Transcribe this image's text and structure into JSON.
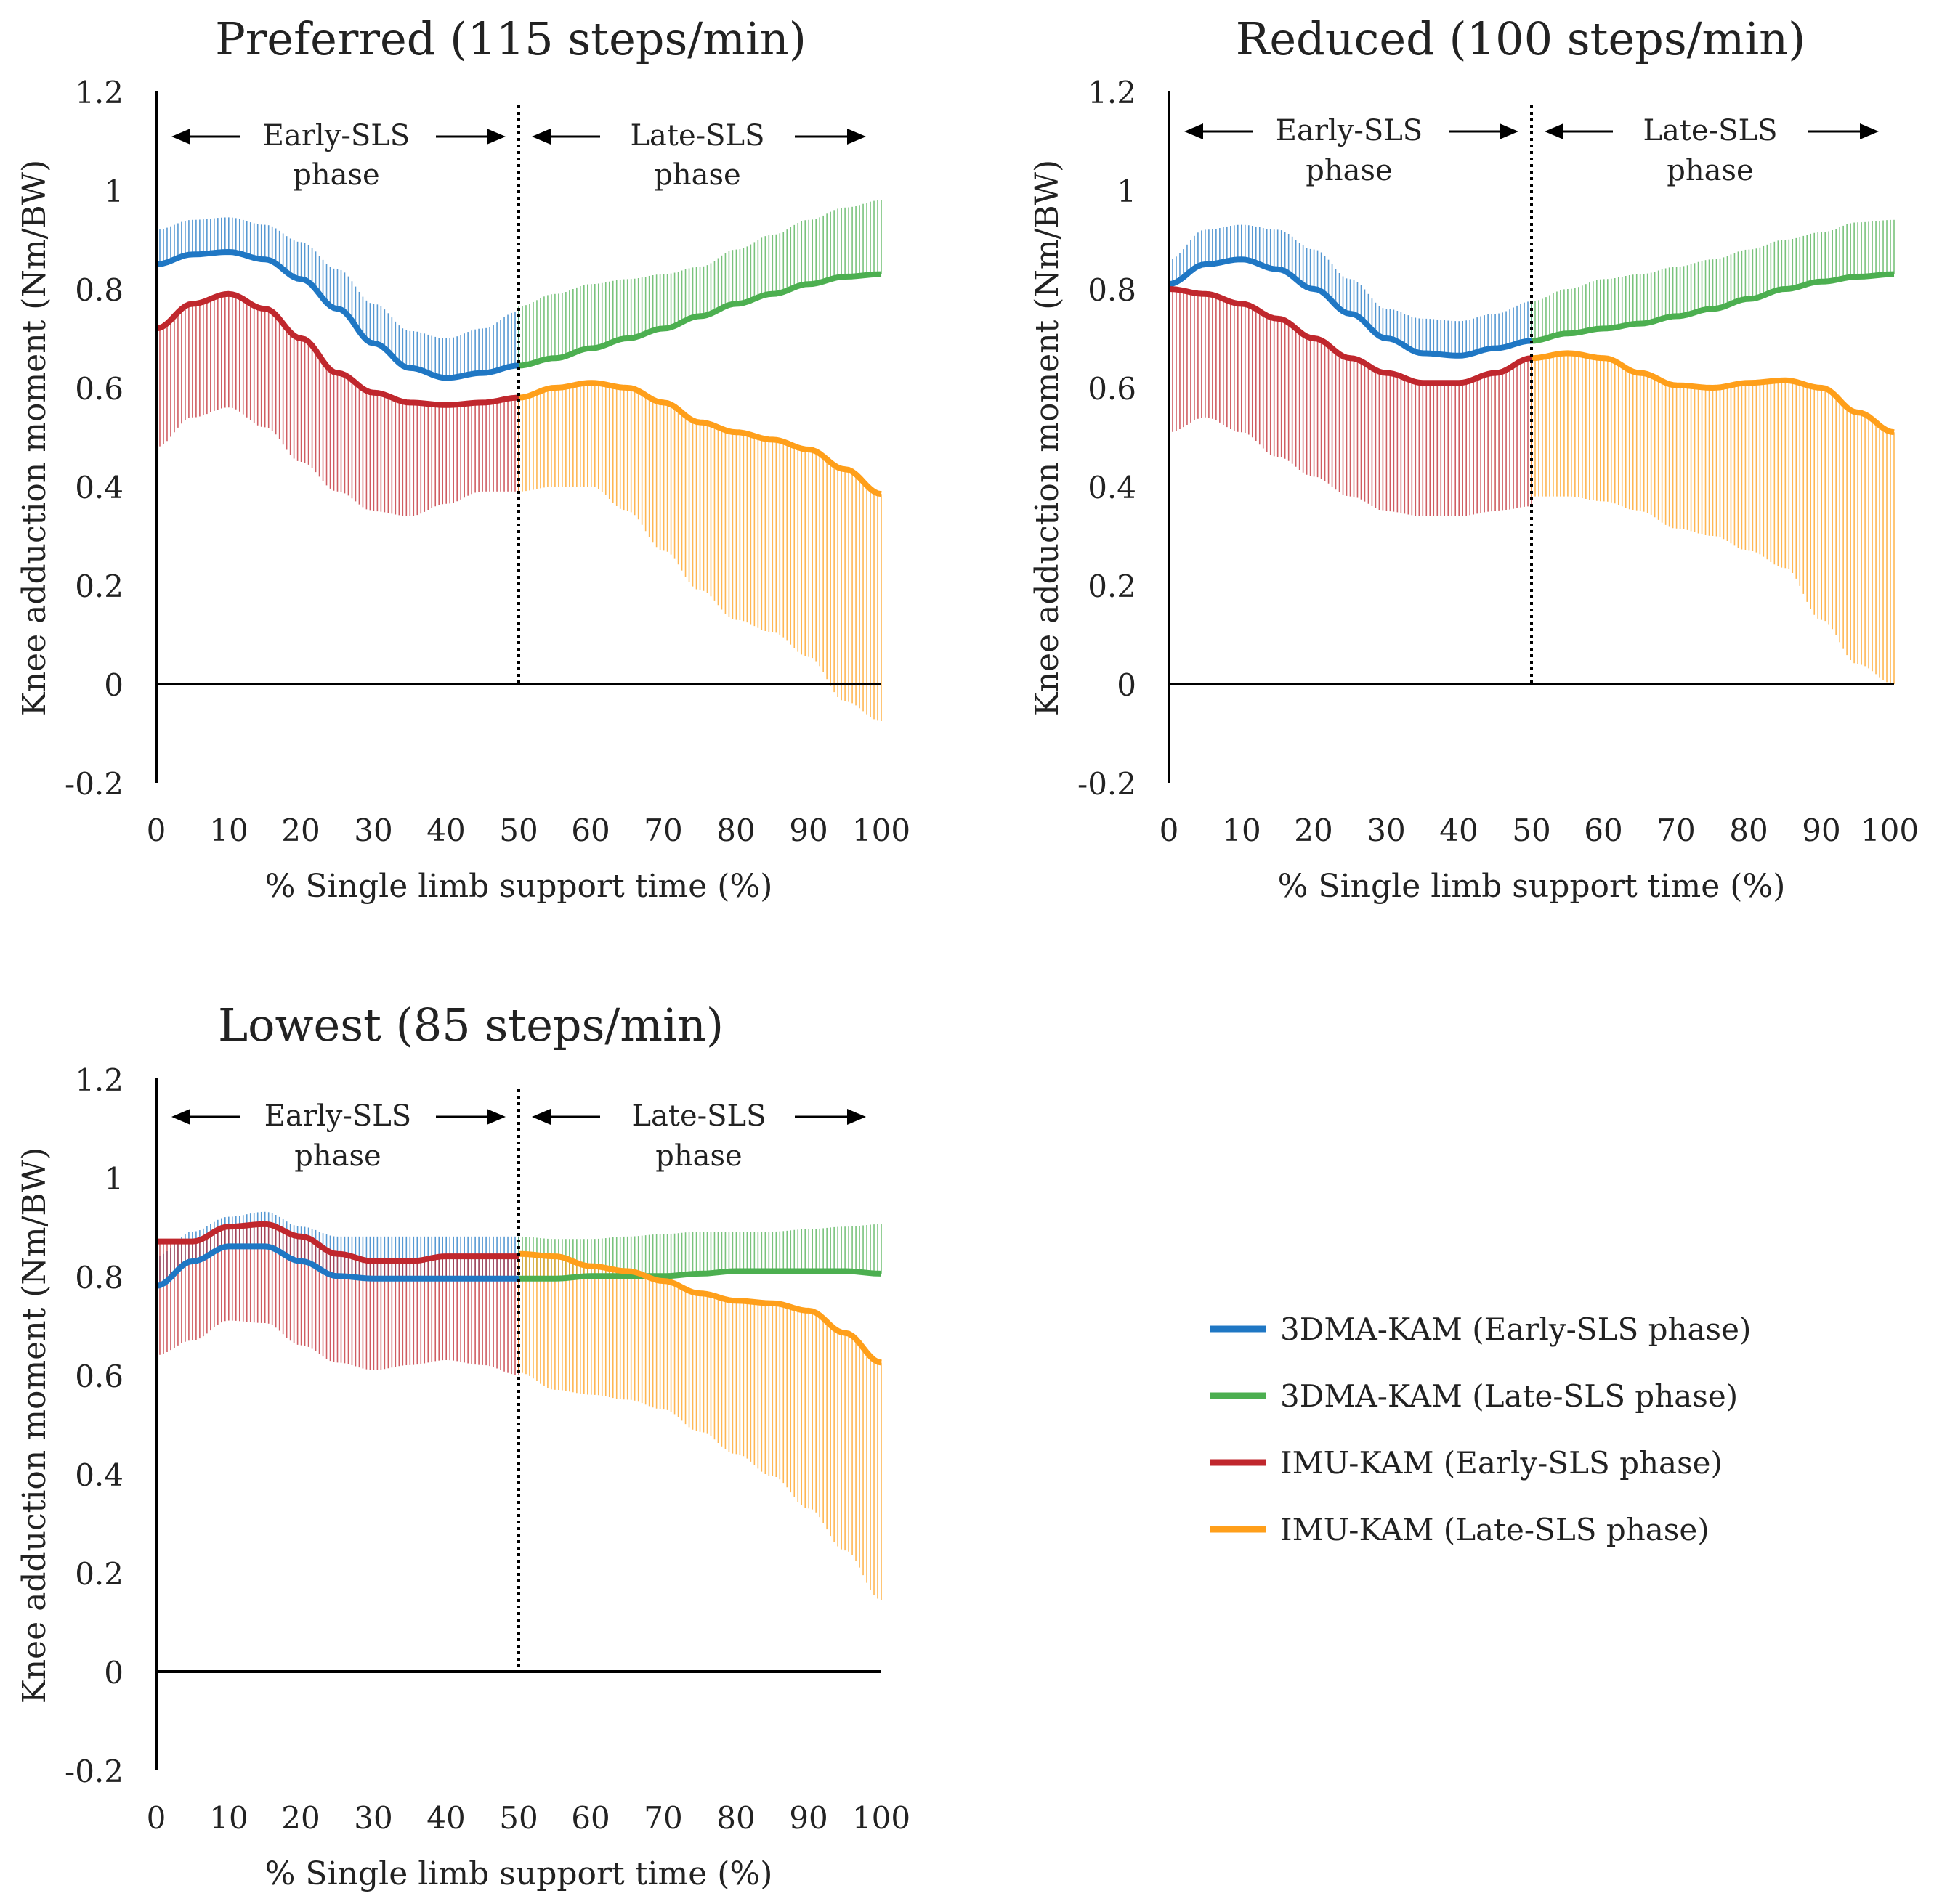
{
  "series_meta": [
    {
      "key": "dma_early",
      "name": "3DMA-KAM (Early-SLS phase)",
      "color": "#1f77c4",
      "whisker": "up"
    },
    {
      "key": "dma_late",
      "name": "3DMA-KAM (Late-SLS phase)",
      "color": "#4caf50",
      "whisker": "up"
    },
    {
      "key": "imu_early",
      "name": "IMU-KAM (Early-SLS phase)",
      "color": "#c0272d",
      "whisker": "down"
    },
    {
      "key": "imu_late",
      "name": "IMU-KAM (Late-SLS phase)",
      "color": "#ff9f1a",
      "whisker": "down"
    }
  ],
  "phase_labels": {
    "early_1": "Early-SLS",
    "late_1": "Late-SLS",
    "line_2": "phase"
  },
  "chart_data": [
    {
      "type": "line",
      "title": "Preferred (115 steps/min)",
      "xlabel": "% Single limb support time (%)",
      "ylabel": "Knee adduction moment (Nm/BW)",
      "xlim": [
        0,
        100
      ],
      "ylim": [
        -0.2,
        1.2
      ],
      "xticks": [
        "0",
        "10",
        "20",
        "30",
        "40",
        "50",
        "60",
        "70",
        "80",
        "90",
        "100"
      ],
      "yticks": [
        "-0.2",
        "0",
        "0.2",
        "0.4",
        "0.6",
        "0.8",
        "1",
        "1.2"
      ],
      "phase_divider_x": 50,
      "series": [
        {
          "name": "3DMA-KAM (Early-SLS phase)",
          "x": [
            0,
            5,
            10,
            15,
            20,
            25,
            30,
            35,
            40,
            45,
            50
          ],
          "mean": [
            0.85,
            0.87,
            0.875,
            0.86,
            0.82,
            0.76,
            0.69,
            0.64,
            0.62,
            0.63,
            0.645
          ],
          "sd": [
            0.07,
            0.07,
            0.07,
            0.07,
            0.075,
            0.08,
            0.08,
            0.075,
            0.08,
            0.09,
            0.11
          ]
        },
        {
          "name": "3DMA-KAM (Late-SLS phase)",
          "x": [
            50,
            55,
            60,
            65,
            70,
            75,
            80,
            85,
            90,
            95,
            100
          ],
          "mean": [
            0.645,
            0.66,
            0.68,
            0.7,
            0.72,
            0.745,
            0.77,
            0.79,
            0.81,
            0.825,
            0.83
          ],
          "sd": [
            0.12,
            0.13,
            0.13,
            0.12,
            0.11,
            0.1,
            0.11,
            0.12,
            0.13,
            0.14,
            0.15
          ]
        },
        {
          "name": "IMU-KAM (Early-SLS phase)",
          "x": [
            0,
            5,
            10,
            15,
            20,
            25,
            30,
            35,
            40,
            45,
            50
          ],
          "mean": [
            0.72,
            0.77,
            0.79,
            0.76,
            0.7,
            0.63,
            0.59,
            0.57,
            0.565,
            0.57,
            0.58
          ],
          "sd": [
            0.24,
            0.23,
            0.23,
            0.24,
            0.25,
            0.24,
            0.24,
            0.23,
            0.2,
            0.18,
            0.19
          ]
        },
        {
          "name": "IMU-KAM (Late-SLS phase)",
          "x": [
            50,
            55,
            60,
            65,
            70,
            75,
            80,
            85,
            90,
            95,
            100
          ],
          "mean": [
            0.58,
            0.6,
            0.61,
            0.6,
            0.57,
            0.53,
            0.51,
            0.495,
            0.475,
            0.435,
            0.385
          ],
          "sd": [
            0.19,
            0.2,
            0.21,
            0.25,
            0.3,
            0.34,
            0.38,
            0.39,
            0.42,
            0.47,
            0.46
          ]
        }
      ]
    },
    {
      "type": "line",
      "title": "Reduced (100 steps/min)",
      "xlabel": "% Single limb support time (%)",
      "ylabel": "Knee adduction moment (Nm/BW)",
      "xlim": [
        0,
        100
      ],
      "ylim": [
        -0.2,
        1.2
      ],
      "xticks": [
        "0",
        "10",
        "20",
        "30",
        "40",
        "50",
        "60",
        "70",
        "80",
        "90",
        "100"
      ],
      "yticks": [
        "-0.2",
        "0",
        "0.2",
        "0.4",
        "0.6",
        "0.8",
        "1",
        "1.2"
      ],
      "phase_divider_x": 50,
      "series": [
        {
          "name": "3DMA-KAM (Early-SLS phase)",
          "x": [
            0,
            5,
            10,
            15,
            20,
            25,
            30,
            35,
            40,
            45,
            50
          ],
          "mean": [
            0.81,
            0.85,
            0.86,
            0.84,
            0.8,
            0.75,
            0.7,
            0.67,
            0.665,
            0.68,
            0.695
          ],
          "sd": [
            0.05,
            0.07,
            0.07,
            0.08,
            0.08,
            0.07,
            0.06,
            0.07,
            0.07,
            0.07,
            0.08
          ]
        },
        {
          "name": "3DMA-KAM (Late-SLS phase)",
          "x": [
            50,
            55,
            60,
            65,
            70,
            75,
            80,
            85,
            90,
            95,
            100
          ],
          "mean": [
            0.695,
            0.71,
            0.72,
            0.73,
            0.745,
            0.76,
            0.78,
            0.8,
            0.815,
            0.825,
            0.83
          ],
          "sd": [
            0.08,
            0.09,
            0.1,
            0.1,
            0.1,
            0.1,
            0.1,
            0.1,
            0.1,
            0.11,
            0.11
          ]
        },
        {
          "name": "IMU-KAM (Early-SLS phase)",
          "x": [
            0,
            5,
            10,
            15,
            20,
            25,
            30,
            35,
            40,
            45,
            50
          ],
          "mean": [
            0.8,
            0.79,
            0.77,
            0.74,
            0.7,
            0.66,
            0.63,
            0.61,
            0.61,
            0.63,
            0.66
          ],
          "sd": [
            0.29,
            0.25,
            0.26,
            0.28,
            0.28,
            0.28,
            0.28,
            0.27,
            0.27,
            0.28,
            0.3
          ]
        },
        {
          "name": "IMU-KAM (Late-SLS phase)",
          "x": [
            50,
            55,
            60,
            65,
            70,
            75,
            80,
            85,
            90,
            95,
            100
          ],
          "mean": [
            0.66,
            0.67,
            0.66,
            0.63,
            0.605,
            0.6,
            0.61,
            0.615,
            0.6,
            0.55,
            0.51
          ],
          "sd": [
            0.28,
            0.29,
            0.29,
            0.28,
            0.29,
            0.3,
            0.34,
            0.38,
            0.47,
            0.51,
            0.51
          ]
        }
      ]
    },
    {
      "type": "line",
      "title": "Lowest (85 steps/min)",
      "xlabel": "% Single limb support time (%)",
      "ylabel": "Knee adduction moment (Nm/BW)",
      "xlim": [
        0,
        100
      ],
      "ylim": [
        -0.2,
        1.2
      ],
      "xticks": [
        "0",
        "10",
        "20",
        "30",
        "40",
        "50",
        "60",
        "70",
        "80",
        "90",
        "100"
      ],
      "yticks": [
        "-0.2",
        "0",
        "0.2",
        "0.4",
        "0.6",
        "0.8",
        "1",
        "1.2"
      ],
      "phase_divider_x": 50,
      "series": [
        {
          "name": "3DMA-KAM (Early-SLS phase)",
          "x": [
            0,
            5,
            10,
            15,
            20,
            25,
            30,
            35,
            40,
            45,
            50
          ],
          "mean": [
            0.78,
            0.83,
            0.86,
            0.86,
            0.83,
            0.8,
            0.795,
            0.795,
            0.795,
            0.795,
            0.795
          ],
          "sd": [
            0.06,
            0.06,
            0.06,
            0.07,
            0.07,
            0.08,
            0.085,
            0.085,
            0.085,
            0.085,
            0.085
          ]
        },
        {
          "name": "3DMA-KAM (Late-SLS phase)",
          "x": [
            50,
            55,
            60,
            65,
            70,
            75,
            80,
            85,
            90,
            95,
            100
          ],
          "mean": [
            0.795,
            0.795,
            0.8,
            0.8,
            0.8,
            0.805,
            0.81,
            0.81,
            0.81,
            0.81,
            0.805
          ],
          "sd": [
            0.085,
            0.08,
            0.075,
            0.08,
            0.085,
            0.085,
            0.08,
            0.08,
            0.085,
            0.09,
            0.1
          ]
        },
        {
          "name": "IMU-KAM (Early-SLS phase)",
          "x": [
            0,
            5,
            10,
            15,
            20,
            25,
            30,
            35,
            40,
            45,
            50
          ],
          "mean": [
            0.87,
            0.87,
            0.9,
            0.905,
            0.88,
            0.845,
            0.83,
            0.83,
            0.84,
            0.84,
            0.84
          ],
          "sd": [
            0.23,
            0.2,
            0.19,
            0.2,
            0.22,
            0.22,
            0.22,
            0.21,
            0.21,
            0.22,
            0.24
          ]
        },
        {
          "name": "IMU-KAM (Late-SLS phase)",
          "x": [
            50,
            55,
            60,
            65,
            70,
            75,
            80,
            85,
            90,
            95,
            100
          ],
          "mean": [
            0.845,
            0.84,
            0.82,
            0.81,
            0.79,
            0.765,
            0.75,
            0.745,
            0.73,
            0.685,
            0.625
          ],
          "sd": [
            0.24,
            0.27,
            0.26,
            0.26,
            0.26,
            0.28,
            0.31,
            0.35,
            0.4,
            0.44,
            0.48
          ]
        }
      ]
    }
  ]
}
